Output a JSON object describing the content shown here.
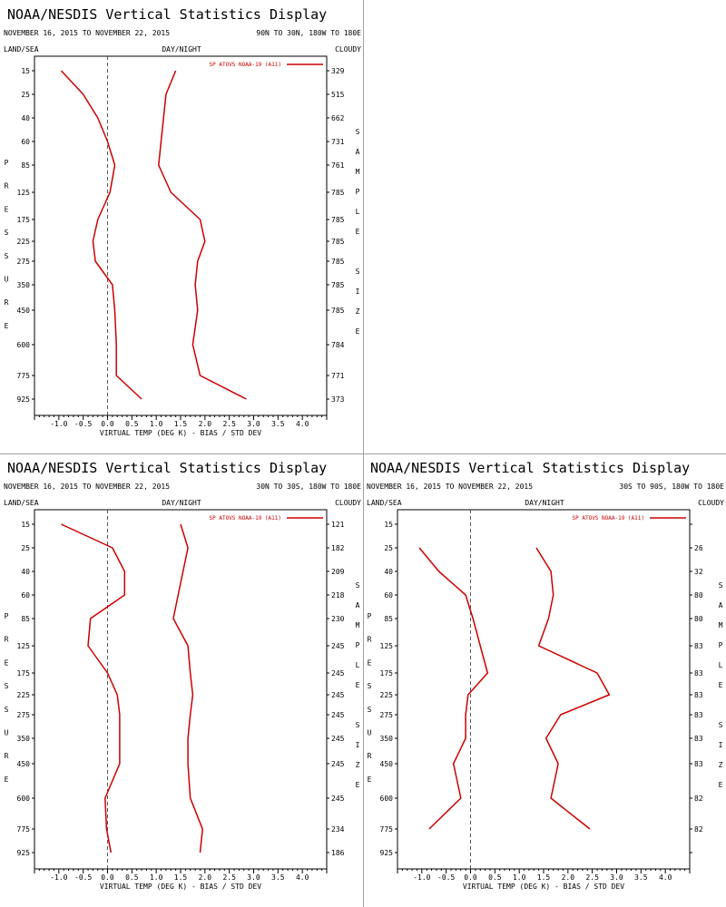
{
  "shared": {
    "title": "NOAA/NESDIS Vertical Statistics Display",
    "date_range": "NOVEMBER 16, 2015 TO NOVEMBER 22, 2015",
    "land_sea": "LAND/SEA",
    "day_night": "DAY/NIGHT",
    "cloudy": "CLOUDY",
    "left_vertical_label": "PRESSURE",
    "right_vertical_label": "SAMPLE SIZE",
    "x_axis_title": "VIRTUAL TEMP (DEG K) - BIAS / STD DEV",
    "legend": "SP ATOVS NOAA-19 (A11)",
    "line_color": "#cc0000",
    "pressure_levels": [
      "15",
      "25",
      "40",
      "60",
      "85",
      "125",
      "175",
      "225",
      "275",
      "350",
      "450",
      "600",
      "775",
      "925"
    ],
    "x_ticks": [
      "-1.0",
      "-0.5",
      "0.0",
      "0.5",
      "1.0",
      "1.5",
      "2.0",
      "2.5",
      "3.0",
      "3.5",
      "4.0"
    ]
  },
  "chart_data": [
    {
      "type": "line",
      "region": "90N TO 30N, 180W TO 180E",
      "xlim": [
        -1.5,
        4.5
      ],
      "y_axis": "pressure (mb), log scale, inverted",
      "series": [
        {
          "values": [
            -0.95,
            -0.5,
            -0.2,
            0.0,
            0.15,
            0.05,
            -0.2,
            -0.3,
            -0.25,
            0.1,
            0.15,
            0.18,
            0.18,
            0.7
          ]
        },
        {
          "values": [
            1.4,
            1.2,
            1.15,
            1.1,
            1.05,
            1.3,
            1.9,
            2.0,
            1.85,
            1.8,
            1.85,
            1.75,
            1.9,
            2.85
          ]
        }
      ],
      "sample_size": [
        "329",
        "515",
        "662",
        "731",
        "761",
        "785",
        "785",
        "785",
        "785",
        "785",
        "785",
        "784",
        "771",
        "373"
      ]
    },
    {
      "type": "line",
      "region": "30N TO 30S, 180W TO 180E",
      "xlim": [
        -1.5,
        4.5
      ],
      "y_axis": "pressure (mb), log scale, inverted",
      "series": [
        {
          "values": [
            -0.95,
            0.1,
            0.35,
            0.35,
            -0.35,
            -0.4,
            0.0,
            0.2,
            0.25,
            0.25,
            0.25,
            -0.05,
            -0.02,
            0.07
          ]
        },
        {
          "values": [
            1.5,
            1.65,
            1.55,
            1.45,
            1.35,
            1.65,
            1.7,
            1.75,
            1.7,
            1.65,
            1.65,
            1.7,
            1.95,
            1.9
          ]
        }
      ],
      "sample_size": [
        "121",
        "182",
        "209",
        "218",
        "230",
        "245",
        "245",
        "245",
        "245",
        "245",
        "245",
        "245",
        "234",
        "186"
      ]
    },
    {
      "type": "line",
      "region": "30S TO 90S, 180W TO 180E",
      "xlim": [
        -1.5,
        4.5
      ],
      "y_axis": "pressure (mb), log scale, inverted",
      "series": [
        {
          "values": [
            null,
            -1.05,
            -0.65,
            -0.1,
            0.05,
            0.2,
            0.35,
            -0.05,
            -0.1,
            -0.1,
            -0.35,
            -0.2,
            -0.85,
            null
          ]
        },
        {
          "values": [
            null,
            1.35,
            1.65,
            1.7,
            1.6,
            1.4,
            2.6,
            2.85,
            1.85,
            1.55,
            1.8,
            1.65,
            2.45,
            null
          ]
        }
      ],
      "sample_size": [
        "",
        "26",
        "32",
        "80",
        "80",
        "83",
        "83",
        "83",
        "83",
        "83",
        "83",
        "82",
        "82",
        ""
      ]
    }
  ]
}
